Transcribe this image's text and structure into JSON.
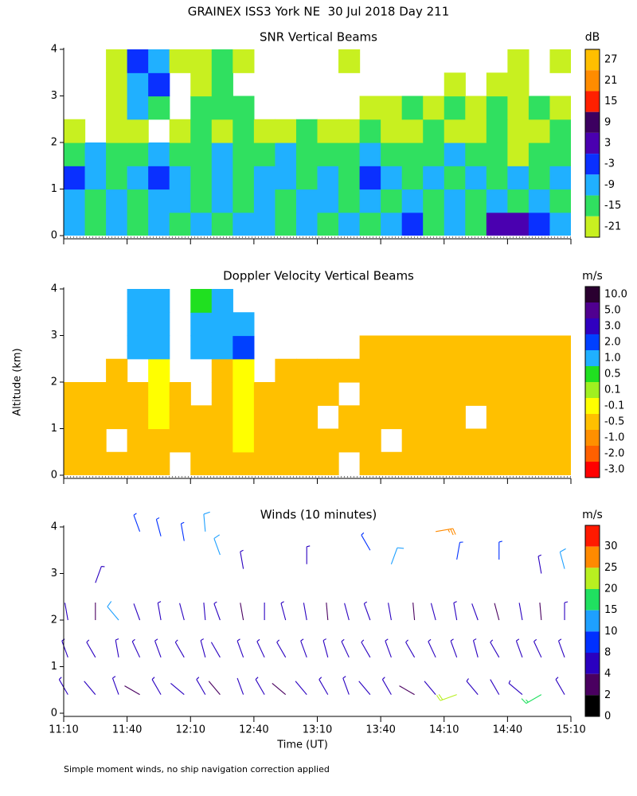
{
  "header": {
    "title": "GRAINEX ISS3 York NE  30 Jul 2018 Day 211"
  },
  "footer": {
    "note": "Simple moment winds, no ship navigation correction applied"
  },
  "chart_data": [
    {
      "type": "heatmap",
      "title": "SNR Vertical Beams",
      "ylim": [
        0,
        4
      ],
      "yticks": [
        0,
        1,
        2,
        3,
        4
      ],
      "x": [
        "11:10",
        "11:20",
        "11:30",
        "11:40",
        "11:50",
        "12:00",
        "12:10",
        "12:20",
        "12:30",
        "12:40",
        "12:50",
        "13:00",
        "13:10",
        "13:20",
        "13:30",
        "13:40",
        "13:50",
        "14:00",
        "14:10",
        "14:20",
        "14:30",
        "14:40",
        "14:50",
        "15:00"
      ],
      "y": [
        0.25,
        0.75,
        1.25,
        1.75,
        2.25,
        2.75,
        3.25,
        3.75
      ],
      "z": [
        [
          -12,
          -15,
          -9,
          -15,
          -9,
          -15,
          -9,
          -15,
          -12,
          -9,
          -15,
          -9,
          -15,
          -9,
          -15,
          -9,
          -3,
          -15,
          -9,
          -15,
          3,
          3,
          -3,
          -9
        ],
        [
          -9,
          -15,
          -9,
          -15,
          -9,
          -9,
          -15,
          -9,
          -15,
          -9,
          -15,
          -9,
          -9,
          -15,
          -9,
          -15,
          -9,
          -15,
          -9,
          -15,
          -9,
          -15,
          -9,
          -15
        ],
        [
          -3,
          -9,
          -15,
          -9,
          -3,
          -9,
          -15,
          -9,
          -15,
          -9,
          -9,
          -15,
          -9,
          -15,
          -3,
          -9,
          -15,
          -9,
          -15,
          -9,
          -15,
          -9,
          -15,
          -9
        ],
        [
          -15,
          -9,
          -15,
          -15,
          -9,
          -15,
          -15,
          -9,
          -15,
          -15,
          -9,
          -15,
          -15,
          -15,
          -9,
          -15,
          -15,
          -15,
          -9,
          -15,
          -15,
          -21,
          -15,
          -15
        ],
        [
          -21,
          null,
          -21,
          -21,
          null,
          -21,
          -15,
          -21,
          -15,
          -21,
          -21,
          -15,
          -21,
          -21,
          -15,
          -21,
          -21,
          -15,
          -21,
          -21,
          -15,
          -21,
          -21,
          -15
        ],
        [
          null,
          null,
          -21,
          -9,
          -15,
          null,
          -15,
          -15,
          -15,
          null,
          null,
          null,
          null,
          null,
          -21,
          -21,
          -15,
          -21,
          -15,
          -21,
          -15,
          -21,
          -15,
          -21
        ],
        [
          null,
          null,
          -21,
          -9,
          -3,
          null,
          -21,
          -15,
          null,
          null,
          null,
          null,
          null,
          null,
          null,
          null,
          null,
          null,
          -21,
          null,
          -21,
          -21,
          null,
          null
        ],
        [
          null,
          null,
          -21,
          -3,
          -9,
          -21,
          -21,
          -15,
          -21,
          null,
          null,
          null,
          null,
          -21,
          null,
          null,
          null,
          null,
          null,
          null,
          null,
          -21,
          null,
          -21
        ]
      ],
      "colorbar": {
        "label": "dB",
        "tick_position": "center",
        "ticks": [
          27,
          21,
          15,
          9,
          3,
          -3,
          -9,
          -15,
          -21
        ],
        "colors": [
          "#ffbf00",
          "#ff8c00",
          "#ff2000",
          "#3c0060",
          "#4a00b0",
          "#0a30ff",
          "#20b0ff",
          "#30e060",
          "#c8f020"
        ]
      }
    },
    {
      "type": "heatmap",
      "title": "Doppler Velocity Vertical Beams",
      "ylabel": "Altitude (km)",
      "ylim": [
        0,
        4
      ],
      "yticks": [
        0,
        1,
        2,
        3,
        4
      ],
      "x": [
        "11:10",
        "11:20",
        "11:30",
        "11:40",
        "11:50",
        "12:00",
        "12:10",
        "12:20",
        "12:30",
        "12:40",
        "12:50",
        "13:00",
        "13:10",
        "13:20",
        "13:30",
        "13:40",
        "13:50",
        "14:00",
        "14:10",
        "14:20",
        "14:30",
        "14:40",
        "14:50",
        "15:00"
      ],
      "y": [
        0.25,
        0.75,
        1.25,
        1.75,
        2.25,
        2.75,
        3.25,
        3.75
      ],
      "z": [
        [
          -0.5,
          -0.5,
          -0.5,
          -0.5,
          -0.5,
          null,
          -0.5,
          -0.5,
          -0.5,
          -0.5,
          -0.5,
          -0.5,
          -0.5,
          null,
          -0.5,
          -0.5,
          -0.5,
          -0.5,
          -0.5,
          -0.5,
          -0.5,
          -0.5,
          -0.5,
          -0.5
        ],
        [
          -0.5,
          -0.5,
          null,
          -0.5,
          -0.5,
          -0.5,
          -0.5,
          -0.5,
          -0.1,
          -0.5,
          -0.5,
          -0.5,
          -0.5,
          -0.5,
          -0.5,
          null,
          -0.5,
          -0.5,
          -0.5,
          -0.5,
          -0.5,
          -0.5,
          -0.5,
          -0.5
        ],
        [
          -0.5,
          -0.5,
          -0.5,
          -0.5,
          -0.1,
          -0.5,
          -0.5,
          -0.5,
          -0.1,
          -0.5,
          -0.5,
          -0.5,
          null,
          -0.5,
          -0.5,
          -0.5,
          -0.5,
          -0.5,
          -0.5,
          null,
          -0.5,
          -0.5,
          -0.5,
          -0.5
        ],
        [
          -0.5,
          -0.5,
          -0.5,
          -0.5,
          -0.1,
          -0.5,
          null,
          -0.5,
          -0.1,
          -0.5,
          -0.5,
          -0.5,
          -0.5,
          null,
          -0.5,
          -0.5,
          -0.5,
          -0.5,
          -0.5,
          -0.5,
          -0.5,
          -0.5,
          -0.5,
          -0.5
        ],
        [
          null,
          null,
          -0.5,
          null,
          -0.1,
          null,
          null,
          -0.5,
          -0.1,
          null,
          -0.5,
          -0.5,
          -0.5,
          -0.5,
          -0.5,
          -0.5,
          -0.5,
          -0.5,
          -0.5,
          -0.5,
          -0.5,
          -0.5,
          -0.5,
          -0.5
        ],
        [
          null,
          null,
          null,
          1.0,
          1.0,
          null,
          1.0,
          1.0,
          2.0,
          null,
          null,
          null,
          null,
          null,
          -0.5,
          -0.5,
          -0.5,
          -0.5,
          -0.5,
          -0.5,
          -0.5,
          -0.5,
          -0.5,
          -0.5
        ],
        [
          null,
          null,
          null,
          1.0,
          1.0,
          null,
          1.0,
          1.0,
          1.0,
          null,
          null,
          null,
          null,
          null,
          null,
          null,
          null,
          null,
          null,
          null,
          null,
          null,
          null,
          null
        ],
        [
          null,
          null,
          null,
          1.0,
          1.0,
          null,
          0.5,
          1.0,
          null,
          null,
          null,
          null,
          null,
          null,
          null,
          null,
          null,
          null,
          null,
          null,
          null,
          null,
          null,
          null
        ]
      ],
      "colorbar": {
        "label": "m/s",
        "tick_position": "center",
        "ticks": [
          {
            "value": 10,
            "label": "10.0"
          },
          {
            "value": 5,
            "label": "5.0"
          },
          {
            "value": 3,
            "label": "3.0"
          },
          {
            "value": 2,
            "label": "2.0"
          },
          {
            "value": 1,
            "label": "1.0"
          },
          0.5,
          0.1,
          -0.1,
          -0.5,
          {
            "value": -1,
            "label": "-1.0"
          },
          {
            "value": -2,
            "label": "-2.0"
          },
          {
            "value": -3,
            "label": "-3.0"
          }
        ],
        "colors": [
          "#2a0030",
          "#500090",
          "#3000c0",
          "#0040ff",
          "#20b0ff",
          "#20e020",
          "#a0f020",
          "#ffff00",
          "#ffc000",
          "#ff9000",
          "#ff6000",
          "#ff0000"
        ]
      }
    },
    {
      "type": "barbs",
      "title": "Winds (10 minutes)",
      "xlabel": "Time (UT)",
      "xlim": [
        "11:10",
        "15:10"
      ],
      "xticks": [
        "11:10",
        "11:40",
        "12:10",
        "12:40",
        "13:10",
        "13:40",
        "14:10",
        "14:40",
        "15:10"
      ],
      "ylim": [
        0,
        4
      ],
      "yticks": [
        0,
        1,
        2,
        3,
        4
      ],
      "x": [
        "11:12",
        "11:25",
        "11:36",
        "11:46",
        "11:56",
        "12:07",
        "12:17",
        "12:24",
        "12:35",
        "12:45",
        "12:55",
        "13:05",
        "13:15",
        "13:25",
        "13:35",
        "13:45",
        "13:56",
        "14:06",
        "14:16",
        "14:26",
        "14:36",
        "14:47",
        "14:56",
        "15:07",
        "11:12",
        "11:25",
        "11:36",
        "11:46",
        "11:56",
        "12:07",
        "12:17",
        "12:24",
        "12:35",
        "12:45",
        "12:55",
        "13:05",
        "13:15",
        "13:25",
        "13:35",
        "13:45",
        "13:56",
        "14:06",
        "14:16",
        "14:26",
        "14:36",
        "14:47",
        "14:56",
        "15:07",
        "11:12",
        "11:25",
        "11:36",
        "11:46",
        "11:56",
        "12:07",
        "12:17",
        "12:24",
        "12:35",
        "12:45",
        "12:55",
        "13:05",
        "13:15",
        "13:25",
        "13:35",
        "13:45",
        "13:56",
        "14:06",
        "14:16",
        "14:26",
        "14:36",
        "14:47",
        "14:56",
        "15:07",
        "11:25",
        "11:46",
        "11:56",
        "12:07",
        "12:17",
        "12:24",
        "12:35",
        "13:05",
        "13:35",
        "13:45",
        "14:06",
        "14:16",
        "14:36",
        "14:56",
        "15:07"
      ],
      "y": [
        0.4,
        0.4,
        0.4,
        0.4,
        0.4,
        0.4,
        0.4,
        0.4,
        0.4,
        0.4,
        0.4,
        0.4,
        0.4,
        0.4,
        0.4,
        0.4,
        0.4,
        0.4,
        0.4,
        0.4,
        0.4,
        0.4,
        0.4,
        0.4,
        1.2,
        1.2,
        1.2,
        1.2,
        1.2,
        1.2,
        1.2,
        1.2,
        1.2,
        1.2,
        1.2,
        1.2,
        1.2,
        1.2,
        1.2,
        1.2,
        1.2,
        1.2,
        1.2,
        1.2,
        1.2,
        1.2,
        1.2,
        1.2,
        2.0,
        2.0,
        2.0,
        2.0,
        2.0,
        2.0,
        2.0,
        2.0,
        2.0,
        2.0,
        2.0,
        2.0,
        2.0,
        2.0,
        2.0,
        2.0,
        2.0,
        2.0,
        2.0,
        2.0,
        2.0,
        2.0,
        2.0,
        2.0,
        2.8,
        3.9,
        3.8,
        3.7,
        3.9,
        3.4,
        3.1,
        3.2,
        3.5,
        3.2,
        3.9,
        3.3,
        3.3,
        3.0,
        3.1
      ],
      "speed": [
        5,
        4,
        6,
        3,
        5,
        4,
        6,
        3,
        4,
        5,
        3,
        4,
        5,
        6,
        4,
        5,
        3,
        4,
        21,
        5,
        4,
        6,
        19,
        5,
        6,
        5,
        7,
        5,
        6,
        5,
        6,
        4,
        5,
        6,
        5,
        6,
        5,
        6,
        5,
        6,
        5,
        6,
        5,
        7,
        6,
        5,
        6,
        5,
        4,
        3,
        12,
        4,
        5,
        4,
        4,
        5,
        3,
        4,
        5,
        4,
        3,
        4,
        5,
        4,
        3,
        4,
        5,
        4,
        3,
        4,
        3,
        5,
        6,
        9,
        8,
        8,
        10,
        11,
        7,
        6,
        9,
        12,
        28,
        8,
        9,
        7,
        12
      ],
      "direction": [
        330,
        320,
        340,
        300,
        330,
        310,
        330,
        320,
        340,
        330,
        310,
        320,
        330,
        340,
        320,
        330,
        300,
        320,
        250,
        320,
        330,
        310,
        240,
        330,
        340,
        330,
        350,
        335,
        340,
        330,
        345,
        330,
        340,
        335,
        330,
        340,
        345,
        335,
        330,
        340,
        330,
        335,
        340,
        345,
        330,
        340,
        335,
        340,
        350,
        0,
        320,
        340,
        350,
        345,
        355,
        340,
        350,
        0,
        345,
        350,
        355,
        345,
        340,
        350,
        355,
        345,
        350,
        340,
        345,
        350,
        355,
        0,
        20,
        340,
        345,
        350,
        355,
        340,
        350,
        0,
        330,
        20,
        80,
        10,
        0,
        350,
        345
      ],
      "colorbar": {
        "label": "m/s",
        "tick_position": "edge",
        "ticks": [
          30,
          25,
          20,
          15,
          10,
          8,
          4,
          2,
          0
        ],
        "colors": [
          "#ff1a00",
          "#ff8a00",
          "#b8f020",
          "#20e060",
          "#1ea0ff",
          "#0030ff",
          "#2a00c0",
          "#4a0060",
          "#000000"
        ]
      }
    }
  ]
}
